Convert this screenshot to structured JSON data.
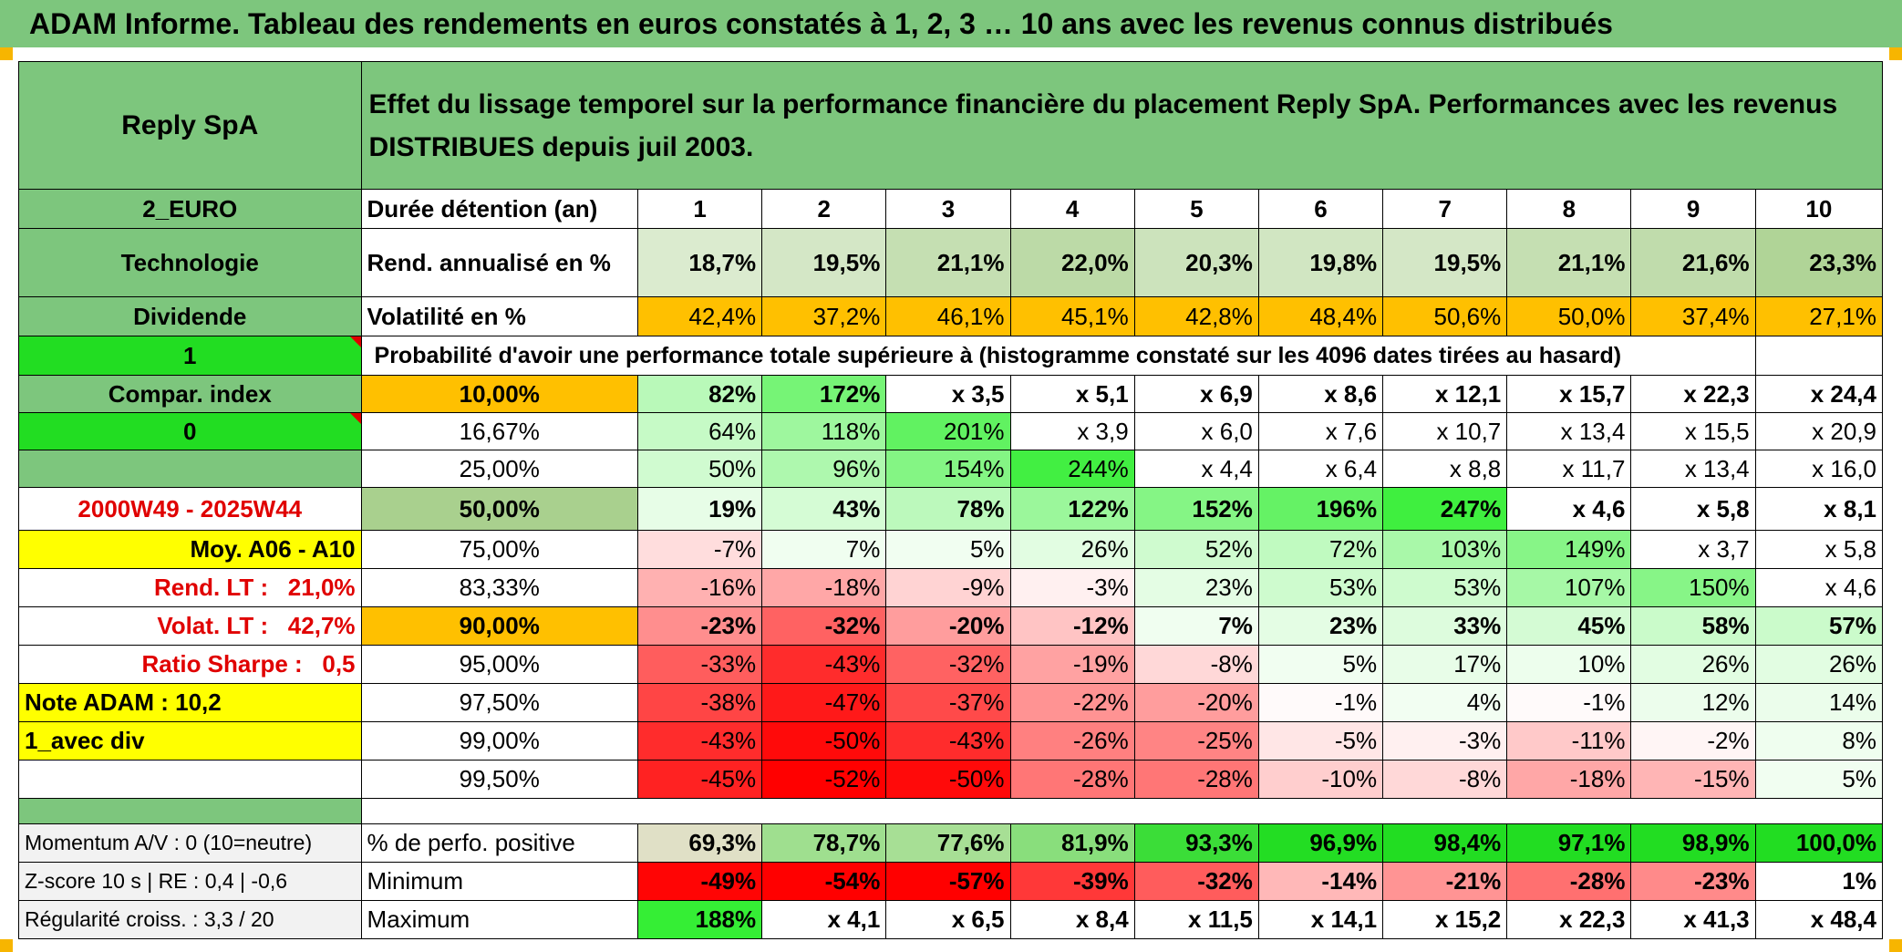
{
  "title": "ADAM Informe. Tableau des rendements en euros constatés à 1, 2, 3 … 10 ans avec les revenus connus distribués",
  "left": {
    "name": "Reply SpA",
    "currency": "2_EURO",
    "sector": "Technologie",
    "income_type": "Dividende",
    "flag_value": "1",
    "compar_label": "Compar. index",
    "compar_value": "0",
    "period": "2000W49 - 2025W44",
    "avg_label": "Moy. A06 - A10",
    "rend_lt": "Rend. LT :   21,0%",
    "volat_lt": "Volat. LT :   42,7%",
    "sharpe": "Ratio Sharpe :   0,5",
    "note": "Note ADAM : 10,2",
    "variant": "1_avec div",
    "momentum": "Momentum A/V : 0 (10=neutre)",
    "zscore": "Z-score 10 s | RE : 0,4 | -0,6",
    "regularite": "Régularité croiss. : 3,3 / 20"
  },
  "header_text": "Effet du lissage temporel sur la performance financière du placement Reply SpA. Performances avec les revenus DISTRIBUES depuis juil 2003.",
  "row_labels": {
    "duration": "Durée détention (an)",
    "rend": "Rend. annualisé en %",
    "vol": "Volatilité en %",
    "prob": "Probabilité d'avoir une performance totale supérieure à (histogramme constaté sur les 4096 dates tirées au hasard)",
    "pos": "% de perfo. positive",
    "min": "Minimum",
    "max": "Maximum"
  },
  "years": [
    "1",
    "2",
    "3",
    "4",
    "5",
    "6",
    "7",
    "8",
    "9",
    "10"
  ],
  "rend": [
    "18,7%",
    "19,5%",
    "21,1%",
    "22,0%",
    "20,3%",
    "19,8%",
    "19,5%",
    "21,1%",
    "21,6%",
    "23,3%"
  ],
  "vol": [
    "42,4%",
    "37,2%",
    "46,1%",
    "45,1%",
    "42,8%",
    "48,4%",
    "50,6%",
    "50,0%",
    "37,4%",
    "27,1%"
  ],
  "pct_rows": [
    {
      "p": "10,00%",
      "v": [
        "82%",
        "172%",
        "x 3,5",
        "x 5,1",
        "x 6,9",
        "x 8,6",
        "x 12,1",
        "x 15,7",
        "x 22,3",
        "x 24,4"
      ]
    },
    {
      "p": "16,67%",
      "v": [
        "64%",
        "118%",
        "201%",
        "x 3,9",
        "x 6,0",
        "x 7,6",
        "x 10,7",
        "x 13,4",
        "x 15,5",
        "x 20,9"
      ]
    },
    {
      "p": "25,00%",
      "v": [
        "50%",
        "96%",
        "154%",
        "244%",
        "x 4,4",
        "x 6,4",
        "x 8,8",
        "x 11,7",
        "x 13,4",
        "x 16,0"
      ]
    },
    {
      "p": "50,00%",
      "v": [
        "19%",
        "43%",
        "78%",
        "122%",
        "152%",
        "196%",
        "247%",
        "x 4,6",
        "x 5,8",
        "x 8,1"
      ]
    },
    {
      "p": "75,00%",
      "v": [
        "-7%",
        "7%",
        "5%",
        "26%",
        "52%",
        "72%",
        "103%",
        "149%",
        "x 3,7",
        "x 5,8"
      ]
    },
    {
      "p": "83,33%",
      "v": [
        "-16%",
        "-18%",
        "-9%",
        "-3%",
        "23%",
        "53%",
        "53%",
        "107%",
        "150%",
        "x 4,6"
      ]
    },
    {
      "p": "90,00%",
      "v": [
        "-23%",
        "-32%",
        "-20%",
        "-12%",
        "7%",
        "23%",
        "33%",
        "45%",
        "58%",
        "57%"
      ]
    },
    {
      "p": "95,00%",
      "v": [
        "-33%",
        "-43%",
        "-32%",
        "-19%",
        "-8%",
        "5%",
        "17%",
        "10%",
        "26%",
        "26%"
      ]
    },
    {
      "p": "97,50%",
      "v": [
        "-38%",
        "-47%",
        "-37%",
        "-22%",
        "-20%",
        "-1%",
        "4%",
        "-1%",
        "12%",
        "14%"
      ]
    },
    {
      "p": "99,00%",
      "v": [
        "-43%",
        "-50%",
        "-43%",
        "-26%",
        "-25%",
        "-5%",
        "-3%",
        "-11%",
        "-2%",
        "8%"
      ]
    },
    {
      "p": "99,50%",
      "v": [
        "-45%",
        "-52%",
        "-50%",
        "-28%",
        "-28%",
        "-10%",
        "-8%",
        "-18%",
        "-15%",
        "5%"
      ]
    }
  ],
  "pos": [
    "69,3%",
    "78,7%",
    "77,6%",
    "81,9%",
    "93,3%",
    "96,9%",
    "98,4%",
    "97,1%",
    "98,9%",
    "100,0%"
  ],
  "min": [
    "-49%",
    "-54%",
    "-57%",
    "-39%",
    "-32%",
    "-14%",
    "-21%",
    "-28%",
    "-23%",
    "1%"
  ],
  "max": [
    "188%",
    "x 4,1",
    "x 6,5",
    "x 8,4",
    "x 11,5",
    "x 14,1",
    "x 15,2",
    "x 22,3",
    "x 41,3",
    "x 48,4"
  ],
  "colors": {
    "header_green": "#7dc67d",
    "bright_green": "#22dd22",
    "yellow": "#ffff00",
    "orange": "#ffc000",
    "red_text": "#e00000"
  }
}
